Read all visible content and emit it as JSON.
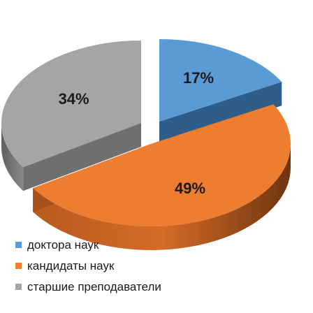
{
  "chart_data": {
    "type": "pie",
    "style": "3d-exploded",
    "slices": [
      {
        "label": "доктора наук",
        "value": 17,
        "display": "17%",
        "color": "#5b9bd5",
        "side_color": "#2e5d8a"
      },
      {
        "label": "кандидаты наук",
        "value": 49,
        "display": "49%",
        "color": "#ed7d31",
        "side_color": "#a8501a"
      },
      {
        "label": "старшие преподаватели",
        "value": 34,
        "display": "34%",
        "color": "#a5a5a5",
        "side_color": "#6f6f6f"
      }
    ],
    "legend_position": "bottom-left"
  }
}
